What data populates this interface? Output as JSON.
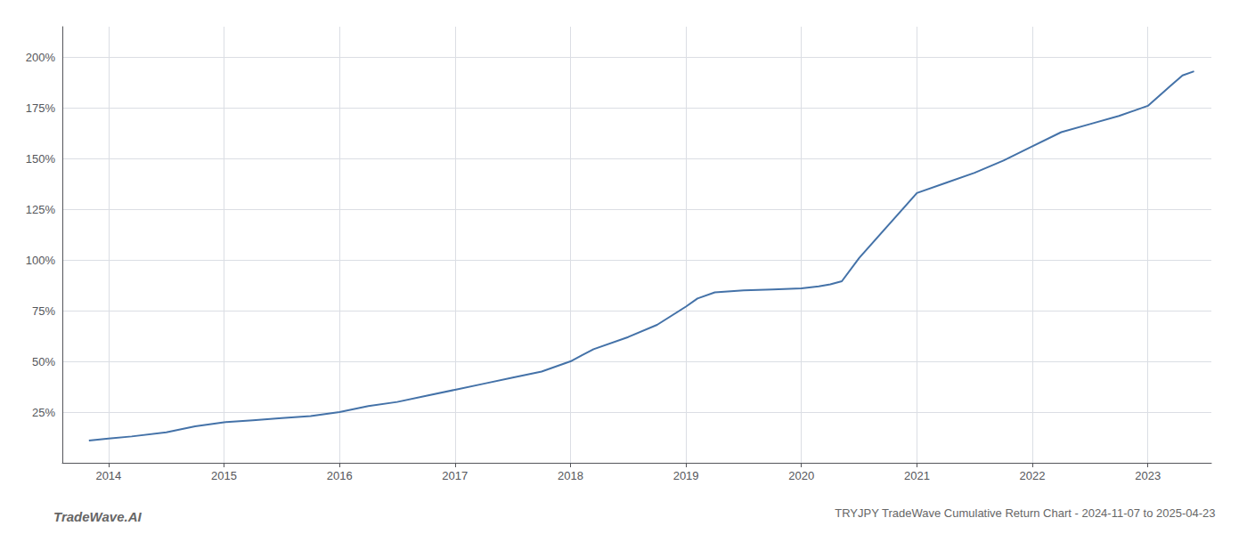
{
  "chart_data": {
    "type": "line",
    "title": "TRYJPY TradeWave Cumulative Return Chart - 2024-11-07 to 2025-04-23",
    "annotations": [
      "TradeWave.AI"
    ],
    "color": "#4472a8",
    "grid": true,
    "x": [
      2013.83,
      2014.0,
      2014.2,
      2014.5,
      2014.75,
      2015.0,
      2015.25,
      2015.5,
      2015.75,
      2016.0,
      2016.25,
      2016.5,
      2016.75,
      2017.0,
      2017.25,
      2017.5,
      2017.75,
      2018.0,
      2018.1,
      2018.2,
      2018.5,
      2018.75,
      2019.0,
      2019.1,
      2019.25,
      2019.5,
      2019.75,
      2020.0,
      2020.15,
      2020.25,
      2020.35,
      2020.5,
      2020.75,
      2021.0,
      2021.25,
      2021.5,
      2021.75,
      2022.0,
      2022.25,
      2022.5,
      2022.75,
      2023.0,
      2023.1,
      2023.2,
      2023.3,
      2023.4
    ],
    "values": [
      11,
      12,
      13,
      15,
      18,
      20,
      21,
      22,
      23,
      25,
      28,
      30,
      33,
      36,
      39,
      42,
      45,
      50,
      53,
      56,
      62,
      68,
      77,
      81,
      84,
      85,
      85.5,
      86,
      87,
      88,
      89.5,
      101,
      117,
      133,
      138,
      143,
      149,
      156,
      163,
      167,
      171,
      176,
      181,
      186,
      191,
      193
    ],
    "xlim": [
      2013.6,
      2023.55
    ],
    "xticks": [
      2014,
      2015,
      2016,
      2017,
      2018,
      2019,
      2020,
      2021,
      2022,
      2023
    ],
    "ylim": [
      0,
      215
    ],
    "yticks": [
      {
        "value": 25,
        "label": "25%"
      },
      {
        "value": 50,
        "label": "50%"
      },
      {
        "value": 75,
        "label": "75%"
      },
      {
        "value": 100,
        "label": "100%"
      },
      {
        "value": 125,
        "label": "125%"
      },
      {
        "value": 150,
        "label": "150%"
      },
      {
        "value": 175,
        "label": "175%"
      },
      {
        "value": 200,
        "label": "200%"
      }
    ]
  }
}
